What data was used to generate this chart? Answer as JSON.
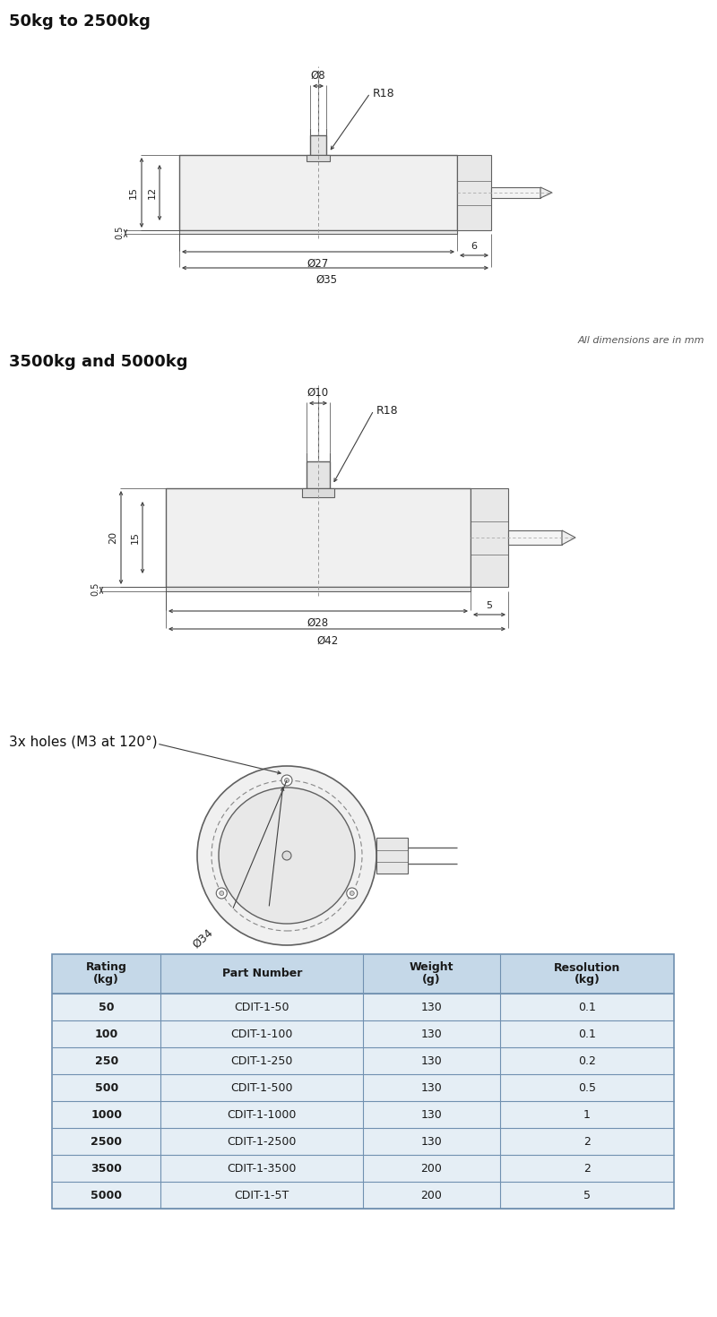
{
  "title1": "50kg to 2500kg",
  "title2": "3500kg and 5000kg",
  "dim_note": "All dimensions are in mm",
  "holes_label": "3x holes (M3 at 120°)",
  "table_headers": [
    "Rating\n(kg)",
    "Part Number",
    "Weight\n(g)",
    "Resolution\n(kg)"
  ],
  "table_rows": [
    [
      "50",
      "CDIT-1-50",
      "130",
      "0.1"
    ],
    [
      "100",
      "CDIT-1-100",
      "130",
      "0.1"
    ],
    [
      "250",
      "CDIT-1-250",
      "130",
      "0.2"
    ],
    [
      "500",
      "CDIT-1-500",
      "130",
      "0.5"
    ],
    [
      "1000",
      "CDIT-1-1000",
      "130",
      "1"
    ],
    [
      "2500",
      "CDIT-1-2500",
      "130",
      "2"
    ],
    [
      "3500",
      "CDIT-1-3500",
      "200",
      "2"
    ],
    [
      "5000",
      "CDIT-1-5T",
      "200",
      "5"
    ]
  ],
  "bg_color": "#ffffff",
  "line_color": "#606060",
  "dim_line_color": "#404040",
  "table_header_bg": "#c5d8e8",
  "table_row_bg": "#e5eef5",
  "table_border": "#7090b0"
}
